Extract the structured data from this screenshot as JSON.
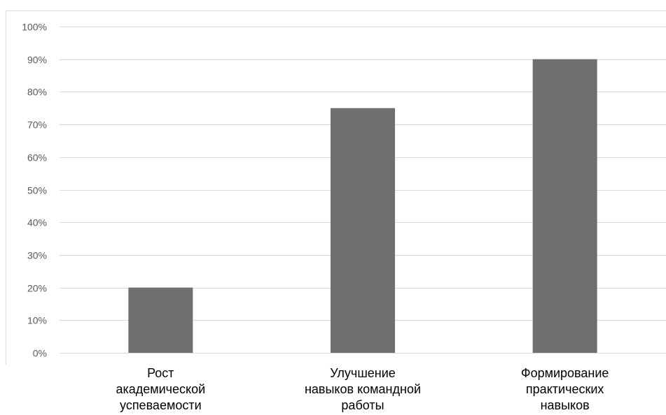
{
  "chart_data": {
    "type": "bar",
    "categories": [
      [
        "Рост",
        "академической",
        "успеваемости"
      ],
      [
        "Улучшение",
        "навыков командной",
        "работы"
      ],
      [
        "Формирование",
        "практических",
        "навыков"
      ]
    ],
    "values": [
      20,
      75,
      90
    ],
    "ylim": [
      0,
      100
    ],
    "yticks": [
      {
        "value": 0,
        "label": "0%"
      },
      {
        "value": 10,
        "label": "10%"
      },
      {
        "value": 20,
        "label": "20%"
      },
      {
        "value": 30,
        "label": "30%"
      },
      {
        "value": 40,
        "label": "40%"
      },
      {
        "value": 50,
        "label": "50%"
      },
      {
        "value": 60,
        "label": "60%"
      },
      {
        "value": 70,
        "label": "70%"
      },
      {
        "value": 80,
        "label": "80%"
      },
      {
        "value": 90,
        "label": "90%"
      },
      {
        "value": 100,
        "label": "100%"
      }
    ],
    "grid": true,
    "legend": "none",
    "bar_color": "#707070",
    "gridline_color": "#d9d9d9",
    "axis_text_color": "#595959",
    "category_text_color": "#000000"
  }
}
